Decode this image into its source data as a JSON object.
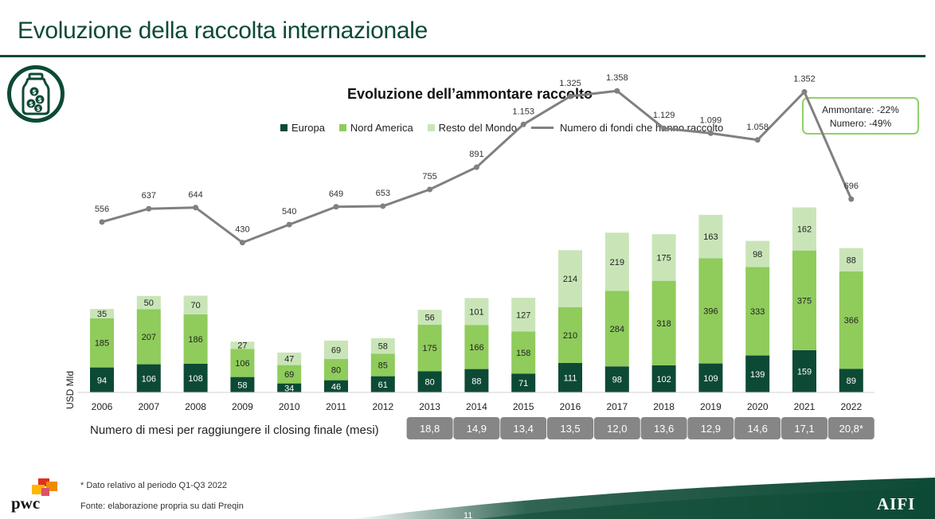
{
  "header": {
    "title": "Evoluzione della raccolta internazionale",
    "icon": "money-jar-icon"
  },
  "summary": {
    "line1": "Ammontare: -22%",
    "line2": "Numero: -49%"
  },
  "months_row": {
    "label": "Numero di mesi per raggiungere il closing finale (mesi)",
    "values": [
      "18,8",
      "14,9",
      "13,4",
      "13,5",
      "12,0",
      "13,6",
      "12,9",
      "14,6",
      "17,1",
      "20,8*"
    ]
  },
  "footer": {
    "footnote": "* Dato relativo al periodo Q1-Q3 2022",
    "source": "Fonte: elaborazione propria su dati Preqin",
    "page_number": "11",
    "pwc_logo_text": "pwc",
    "aifi_logo_text": "AIFI"
  },
  "colors": {
    "europa": "#0d4a35",
    "nord_america": "#8fcc5c",
    "resto_del_mondo": "#c9e5b8",
    "line": "#808080",
    "brand": "#0d4a35",
    "months_box": "#868686"
  },
  "chart_data": {
    "type": "bar",
    "stacked": true,
    "title": "Evoluzione dell’ammontare raccolto",
    "xlabel": "",
    "ylabel": "USD Mld",
    "legend_position": "top",
    "categories": [
      "2006",
      "2007",
      "2008",
      "2009",
      "2010",
      "2011",
      "2012",
      "2013",
      "2014",
      "2015",
      "2016",
      "2017",
      "2018",
      "2019",
      "2020",
      "2021",
      "2022"
    ],
    "series": [
      {
        "name": "Europa",
        "values": [
          94,
          106,
          108,
          58,
          34,
          46,
          61,
          80,
          88,
          71,
          111,
          98,
          102,
          109,
          139,
          159,
          89
        ]
      },
      {
        "name": "Nord America",
        "values": [
          185,
          207,
          186,
          106,
          69,
          80,
          85,
          175,
          166,
          158,
          210,
          284,
          318,
          396,
          333,
          375,
          366
        ]
      },
      {
        "name": "Resto del Mondo",
        "values": [
          35,
          50,
          70,
          27,
          47,
          69,
          58,
          56,
          101,
          127,
          214,
          219,
          175,
          163,
          98,
          162,
          88
        ]
      }
    ],
    "line_series": {
      "name": "Numero di fondi che hanno raccolto",
      "values": [
        556,
        637,
        644,
        430,
        540,
        649,
        653,
        755,
        891,
        1153,
        1325,
        1358,
        1129,
        1099,
        1058,
        1352,
        696
      ],
      "labels": [
        "556",
        "637",
        "644",
        "430",
        "540",
        "649",
        "653",
        "755",
        "891",
        "1.153",
        "1.325",
        "1.358",
        "1.129",
        "1.099",
        "1.058",
        "1.352",
        "696"
      ]
    }
  }
}
